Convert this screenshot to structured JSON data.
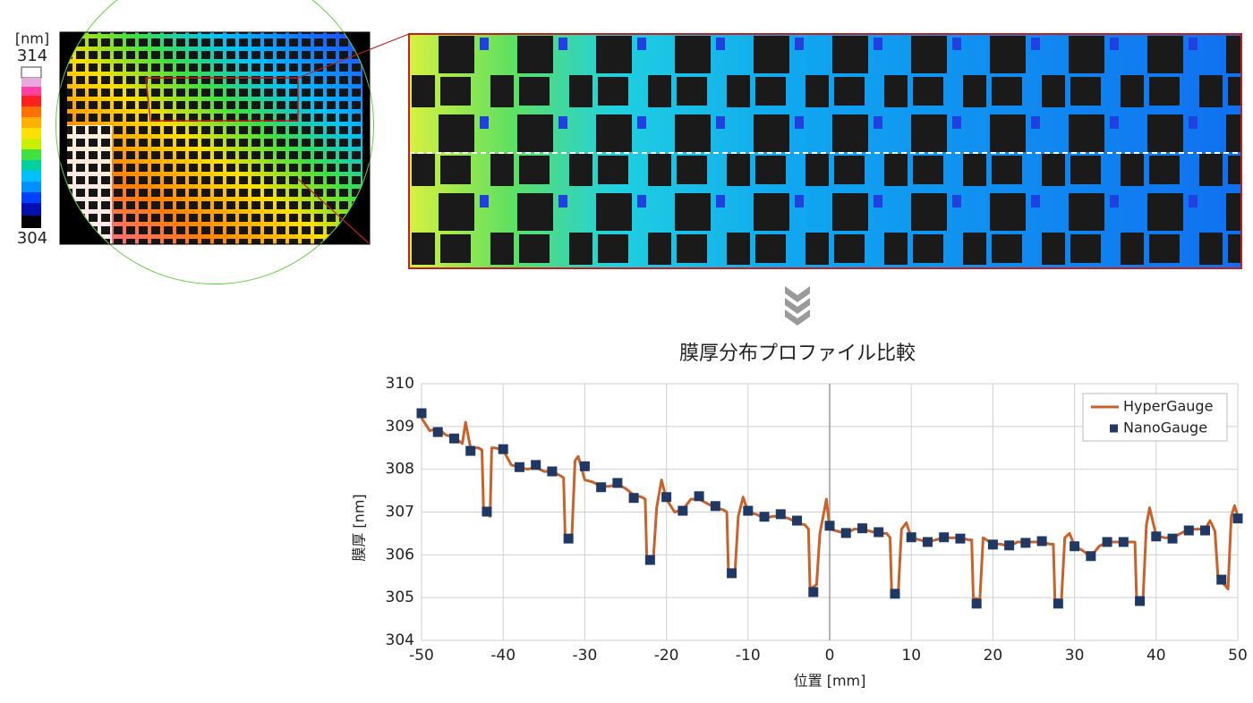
{
  "colorbar": {
    "unit": "[nm]",
    "range": [
      304,
      314
    ]
  },
  "chart_data": {
    "type": "line",
    "title": "膜厚分布プロファイル比較",
    "x_label": "位置 [mm]",
    "y_label": "膜厚 [nm]",
    "xlim": [
      -50,
      50
    ],
    "xticks": [
      -50,
      -40,
      -30,
      -20,
      -10,
      0,
      10,
      20,
      30,
      40,
      50
    ],
    "ylim": [
      304,
      310
    ],
    "yticks": [
      304,
      305,
      306,
      307,
      308,
      309,
      310
    ],
    "grid": true,
    "legend": "upper right",
    "series": [
      {
        "name": "HyperGauge",
        "color": "#c8622a",
        "type": "line",
        "x": [
          -50,
          -49,
          -48,
          -47,
          -46,
          -45,
          -44.6,
          -44,
          -43,
          -42.6,
          -42.4,
          -41.6,
          -41.4,
          -41,
          -40,
          -39,
          -38,
          -37,
          -36,
          -35,
          -34,
          -33,
          -32.6,
          -32.4,
          -31.6,
          -31.2,
          -30.8,
          -30,
          -29,
          -28,
          -27,
          -26,
          -25,
          -24,
          -23,
          -22.6,
          -22.4,
          -21.6,
          -21.2,
          -20.6,
          -20,
          -19,
          -18,
          -17,
          -16,
          -15,
          -14,
          -13,
          -12.6,
          -12.4,
          -11.6,
          -11.2,
          -10.6,
          -10,
          -9,
          -8,
          -7,
          -6,
          -5,
          -4,
          -3,
          -2.6,
          -2.4,
          -1.6,
          -1.2,
          -0.4,
          0,
          1,
          2,
          3,
          4,
          5,
          6,
          7,
          7.4,
          7.6,
          8.4,
          8.8,
          9.4,
          10,
          11,
          12,
          13,
          14,
          15,
          16,
          17,
          17.4,
          17.6,
          18.4,
          18.8,
          20,
          21,
          22,
          23,
          24,
          25,
          26,
          27,
          27.4,
          27.6,
          28.4,
          28.8,
          29.4,
          30,
          31,
          32,
          33,
          34,
          35,
          36,
          37,
          37.4,
          37.6,
          38.4,
          38.8,
          39.2,
          40,
          41,
          42,
          43,
          44,
          45,
          46,
          46.6,
          47.2,
          47.6,
          48.4,
          48.8,
          49.2,
          49.6,
          50
        ],
        "values": [
          309.2,
          308.9,
          308.95,
          308.8,
          308.75,
          308.6,
          309.1,
          308.5,
          308.5,
          308.45,
          307.0,
          306.9,
          308.5,
          308.5,
          308.45,
          308.1,
          308.05,
          308.0,
          308.05,
          307.95,
          307.95,
          307.85,
          307.8,
          306.4,
          306.35,
          308.2,
          308.3,
          307.75,
          307.7,
          307.6,
          307.6,
          307.65,
          307.55,
          307.4,
          307.35,
          307.3,
          305.9,
          305.9,
          307.1,
          307.75,
          307.3,
          307.0,
          307.05,
          307.3,
          307.3,
          307.2,
          307.1,
          307.05,
          307.0,
          305.6,
          305.6,
          306.9,
          307.35,
          307.0,
          306.95,
          306.85,
          306.9,
          306.9,
          306.85,
          306.75,
          306.7,
          306.6,
          305.2,
          305.3,
          306.5,
          307.3,
          306.6,
          306.55,
          306.5,
          306.6,
          306.6,
          306.55,
          306.5,
          306.5,
          306.4,
          305.1,
          305.1,
          306.6,
          306.75,
          306.4,
          306.35,
          306.3,
          306.35,
          306.4,
          306.4,
          306.4,
          306.35,
          306.35,
          305.0,
          304.95,
          306.4,
          306.25,
          306.25,
          306.2,
          306.3,
          306.3,
          306.3,
          306.3,
          306.25,
          306.25,
          304.95,
          304.95,
          306.4,
          306.5,
          306.2,
          306.1,
          305.95,
          306.2,
          306.3,
          306.3,
          306.3,
          306.3,
          306.3,
          305.0,
          305.0,
          306.7,
          307.1,
          306.45,
          306.4,
          306.4,
          306.5,
          306.6,
          306.6,
          306.6,
          306.8,
          306.55,
          305.4,
          305.3,
          305.2,
          306.9,
          307.15,
          306.9
        ]
      },
      {
        "name": "NanoGauge",
        "color": "#1f3864",
        "type": "scatter",
        "x": [
          -50,
          -48,
          -46,
          -44,
          -42,
          -40,
          -38,
          -36,
          -34,
          -32,
          -30,
          -28,
          -26,
          -24,
          -22,
          -20,
          -18,
          -16,
          -14,
          -12,
          -10,
          -8,
          -6,
          -4,
          -2,
          0,
          2,
          4,
          6,
          8,
          10,
          12,
          14,
          16,
          18,
          20,
          22,
          24,
          26,
          28,
          30,
          32,
          34,
          36,
          38,
          40,
          42,
          44,
          46,
          48,
          50
        ],
        "values": [
          309.31,
          308.87,
          308.72,
          308.43,
          307.01,
          308.47,
          308.05,
          308.1,
          307.95,
          306.38,
          308.07,
          307.58,
          307.68,
          307.33,
          305.88,
          307.35,
          307.03,
          307.37,
          307.14,
          305.57,
          307.03,
          306.89,
          306.95,
          306.8,
          305.13,
          306.68,
          306.51,
          306.62,
          306.53,
          305.09,
          306.41,
          306.3,
          306.41,
          306.38,
          304.86,
          306.24,
          306.22,
          306.28,
          306.32,
          304.86,
          306.2,
          305.97,
          306.3,
          306.3,
          304.92,
          306.43,
          306.38,
          306.57,
          306.57,
          305.42,
          306.85
        ]
      }
    ]
  }
}
